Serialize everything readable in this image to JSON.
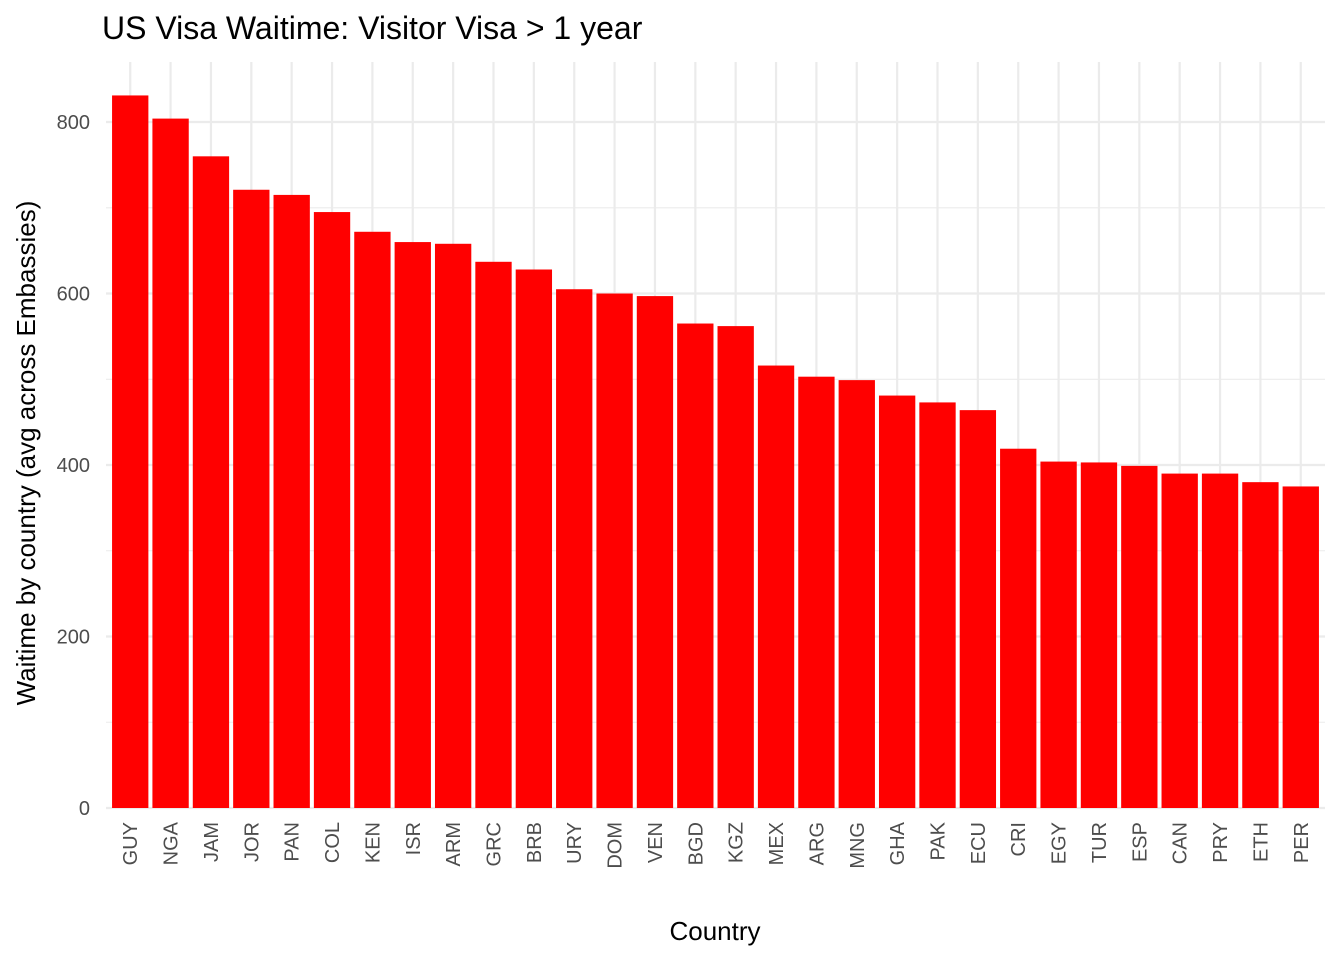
{
  "chart_data": {
    "type": "bar",
    "title": "US Visa Waitime: Visitor Visa > 1 year",
    "xlabel": "Country",
    "ylabel": "Waitime by country (avg across Embassies)",
    "categories": [
      "GUY",
      "NGA",
      "JAM",
      "JOR",
      "PAN",
      "COL",
      "KEN",
      "ISR",
      "ARM",
      "GRC",
      "BRB",
      "URY",
      "DOM",
      "VEN",
      "BGD",
      "KGZ",
      "MEX",
      "ARG",
      "MNG",
      "GHA",
      "PAK",
      "ECU",
      "CRI",
      "EGY",
      "TUR",
      "ESP",
      "CAN",
      "PRY",
      "ETH",
      "PER"
    ],
    "values": [
      831,
      804,
      760,
      721,
      715,
      695,
      672,
      660,
      658,
      637,
      628,
      605,
      600,
      597,
      565,
      562,
      516,
      503,
      499,
      481,
      473,
      464,
      419,
      404,
      403,
      399,
      390,
      390,
      380,
      375
    ],
    "ylim": [
      0,
      870
    ],
    "yticks": [
      0,
      200,
      400,
      600,
      800
    ],
    "ytick_labels": [
      "0",
      "200",
      "400",
      "600",
      "800"
    ],
    "grid": true,
    "bar_color": "#ff0000"
  }
}
